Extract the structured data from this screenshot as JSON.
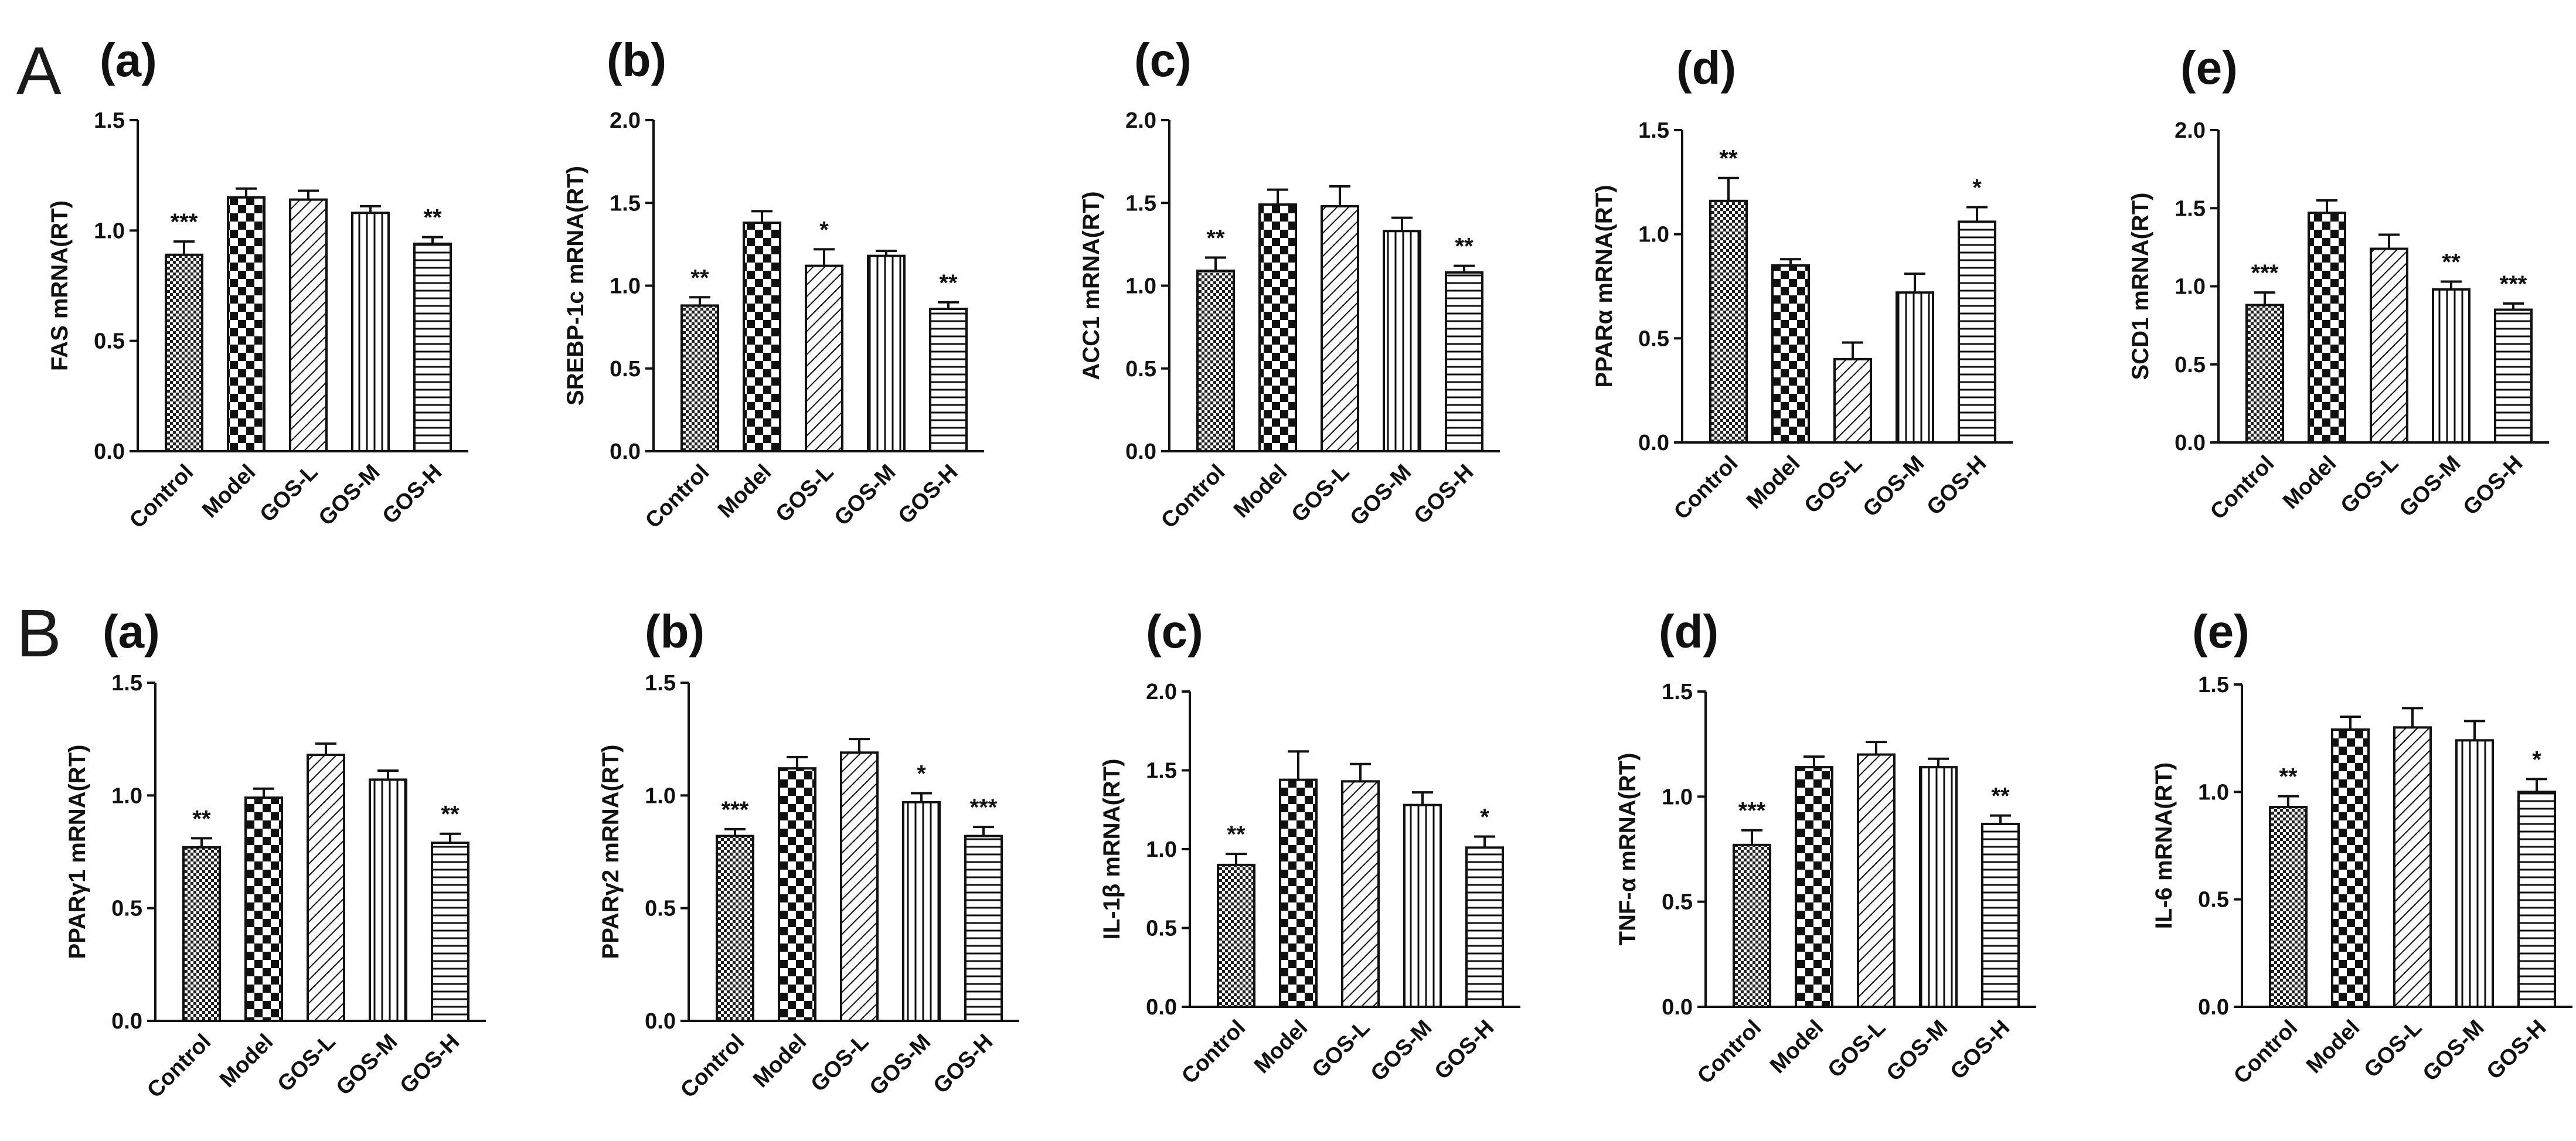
{
  "sections": [
    "A",
    "B"
  ],
  "chart_data": [
    {
      "type": "bar",
      "section": "A",
      "panel": "(a)",
      "ylabel": "FAS mRNA(RT)",
      "ylim": [
        0,
        1.5
      ],
      "yticks": [
        "0.0",
        "0.5",
        "1.0",
        "1.5"
      ],
      "categories": [
        "Control",
        "Model",
        "GOS-L",
        "GOS-M",
        "GOS-H"
      ],
      "values": [
        0.89,
        1.15,
        1.14,
        1.08,
        0.94
      ],
      "errors": [
        0.06,
        0.04,
        0.04,
        0.03,
        0.03
      ],
      "sig": [
        "***",
        "",
        "",
        "",
        "**"
      ]
    },
    {
      "type": "bar",
      "section": "A",
      "panel": "(b)",
      "ylabel": "SREBP-1c mRNA(RT)",
      "ylim": [
        0,
        2.0
      ],
      "yticks": [
        "0.0",
        "0.5",
        "1.0",
        "1.5",
        "2.0"
      ],
      "categories": [
        "Control",
        "Model",
        "GOS-L",
        "GOS-M",
        "GOS-H"
      ],
      "values": [
        0.88,
        1.38,
        1.12,
        1.18,
        0.86
      ],
      "errors": [
        0.05,
        0.07,
        0.1,
        0.03,
        0.04
      ],
      "sig": [
        "**",
        "",
        "*",
        "",
        "**"
      ]
    },
    {
      "type": "bar",
      "section": "A",
      "panel": "(c)",
      "ylabel": "ACC1 mRNA(RT)",
      "ylim": [
        0,
        2.0
      ],
      "yticks": [
        "0.0",
        "0.5",
        "1.0",
        "1.5",
        "2.0"
      ],
      "categories": [
        "Control",
        "Model",
        "GOS-L",
        "GOS-M",
        "GOS-H"
      ],
      "values": [
        1.09,
        1.49,
        1.48,
        1.33,
        1.08
      ],
      "errors": [
        0.08,
        0.09,
        0.12,
        0.08,
        0.04
      ],
      "sig": [
        "**",
        "",
        "",
        "",
        "**"
      ]
    },
    {
      "type": "bar",
      "section": "A",
      "panel": "(d)",
      "ylabel": "PPARα mRNA(RT)",
      "ylim": [
        0,
        1.5
      ],
      "yticks": [
        "0.0",
        "0.5",
        "1.0",
        "1.5"
      ],
      "categories": [
        "Control",
        "Model",
        "GOS-L",
        "GOS-M",
        "GOS-H"
      ],
      "values": [
        1.16,
        0.85,
        0.4,
        0.72,
        1.06
      ],
      "errors": [
        0.11,
        0.03,
        0.08,
        0.09,
        0.07
      ],
      "sig": [
        "**",
        "",
        "",
        "",
        "*"
      ]
    },
    {
      "type": "bar",
      "section": "A",
      "panel": "(e)",
      "ylabel": "SCD1 mRNA(RT)",
      "ylim": [
        0,
        2.0
      ],
      "yticks": [
        "0.0",
        "0.5",
        "1.0",
        "1.5",
        "2.0"
      ],
      "categories": [
        "Control",
        "Model",
        "GOS-L",
        "GOS-M",
        "GOS-H"
      ],
      "values": [
        0.88,
        1.47,
        1.24,
        0.98,
        0.85
      ],
      "errors": [
        0.08,
        0.08,
        0.09,
        0.05,
        0.04
      ],
      "sig": [
        "***",
        "",
        "",
        "**",
        "***"
      ]
    },
    {
      "type": "bar",
      "section": "B",
      "panel": "(a)",
      "ylabel": "PPARγ1 mRNA(RT)",
      "ylim": [
        0,
        1.5
      ],
      "yticks": [
        "0.0",
        "0.5",
        "1.0",
        "1.5"
      ],
      "categories": [
        "Control",
        "Model",
        "GOS-L",
        "GOS-M",
        "GOS-H"
      ],
      "values": [
        0.77,
        0.99,
        1.18,
        1.07,
        0.79
      ],
      "errors": [
        0.04,
        0.04,
        0.05,
        0.04,
        0.04
      ],
      "sig": [
        "**",
        "",
        "",
        "",
        "**"
      ]
    },
    {
      "type": "bar",
      "section": "B",
      "panel": "(b)",
      "ylabel": "PPARγ2 mRNA(RT)",
      "ylim": [
        0,
        1.5
      ],
      "yticks": [
        "0.0",
        "0.5",
        "1.0",
        "1.5"
      ],
      "categories": [
        "Control",
        "Model",
        "GOS-L",
        "GOS-M",
        "GOS-H"
      ],
      "values": [
        0.82,
        1.12,
        1.19,
        0.97,
        0.82
      ],
      "errors": [
        0.03,
        0.05,
        0.06,
        0.04,
        0.04
      ],
      "sig": [
        "***",
        "",
        "",
        "*",
        "***"
      ]
    },
    {
      "type": "bar",
      "section": "B",
      "panel": "(c)",
      "ylabel": "IL-1β mRNA(RT)",
      "ylim": [
        0,
        2.0
      ],
      "yticks": [
        "0.0",
        "0.5",
        "1.0",
        "1.5",
        "2.0"
      ],
      "categories": [
        "Control",
        "Model",
        "GOS-L",
        "GOS-M",
        "GOS-H"
      ],
      "values": [
        0.9,
        1.44,
        1.43,
        1.28,
        1.01
      ],
      "errors": [
        0.07,
        0.18,
        0.11,
        0.08,
        0.07
      ],
      "sig": [
        "**",
        "",
        "",
        "",
        "*"
      ]
    },
    {
      "type": "bar",
      "section": "B",
      "panel": "(d)",
      "ylabel": "TNF-α mRNA(RT)",
      "ylim": [
        0,
        1.5
      ],
      "yticks": [
        "0.0",
        "0.5",
        "1.0",
        "1.5"
      ],
      "categories": [
        "Control",
        "Model",
        "GOS-L",
        "GOS-M",
        "GOS-H"
      ],
      "values": [
        0.77,
        1.14,
        1.2,
        1.14,
        0.87
      ],
      "errors": [
        0.07,
        0.05,
        0.06,
        0.04,
        0.04
      ],
      "sig": [
        "***",
        "",
        "",
        "",
        "**"
      ]
    },
    {
      "type": "bar",
      "section": "B",
      "panel": "(e)",
      "ylabel": "IL-6 mRNA(RT)",
      "ylim": [
        0,
        1.5
      ],
      "yticks": [
        "0.0",
        "0.5",
        "1.0",
        "1.5"
      ],
      "categories": [
        "Control",
        "Model",
        "GOS-L",
        "GOS-M",
        "GOS-H"
      ],
      "values": [
        0.93,
        1.29,
        1.3,
        1.24,
        1.0
      ],
      "errors": [
        0.05,
        0.06,
        0.09,
        0.09,
        0.06
      ],
      "sig": [
        "**",
        "",
        "",
        "",
        "*"
      ]
    }
  ]
}
